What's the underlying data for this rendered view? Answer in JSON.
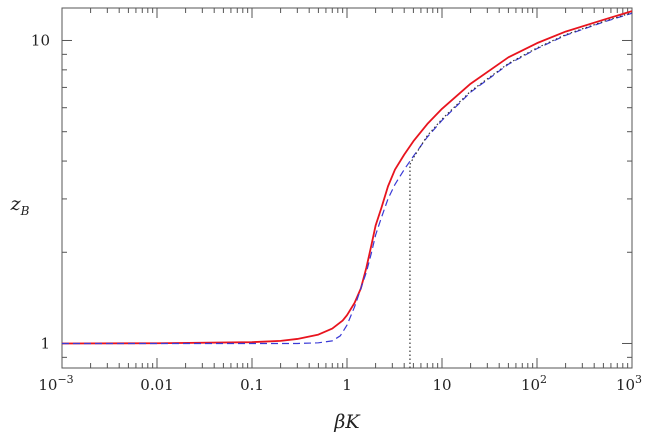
{
  "chart_data": {
    "type": "line",
    "xlabel": "βK",
    "ylabel": "z_B",
    "xscale": "log",
    "yscale": "log",
    "xlim": [
      0.001,
      1000
    ],
    "ylim": [
      0.83,
      12.8
    ],
    "grid": false,
    "legend": "none",
    "x_ticks": [
      {
        "value": 0.001,
        "label": "10",
        "exp": "−3"
      },
      {
        "value": 0.01,
        "label": "0.01",
        "exp": ""
      },
      {
        "value": 0.1,
        "label": "0.1",
        "exp": ""
      },
      {
        "value": 1,
        "label": "1",
        "exp": ""
      },
      {
        "value": 10,
        "label": "10",
        "exp": ""
      },
      {
        "value": 100,
        "label": "10",
        "exp": "2"
      },
      {
        "value": 1000,
        "label": "10",
        "exp": "3"
      }
    ],
    "y_ticks": [
      {
        "value": 1,
        "label": "1"
      },
      {
        "value": 10,
        "label": "10"
      }
    ],
    "vertical_marker": {
      "x": 4.6,
      "style": "dotted",
      "color": "#333333"
    },
    "series": [
      {
        "style": "solid",
        "color": "#e8141e",
        "points": [
          [
            0.001,
            1.0
          ],
          [
            0.01,
            1.002
          ],
          [
            0.1,
            1.01
          ],
          [
            0.2,
            1.02
          ],
          [
            0.3,
            1.035
          ],
          [
            0.5,
            1.07
          ],
          [
            0.7,
            1.12
          ],
          [
            0.9,
            1.19
          ],
          [
            1.0,
            1.24
          ],
          [
            1.2,
            1.36
          ],
          [
            1.4,
            1.52
          ],
          [
            1.6,
            1.78
          ],
          [
            1.8,
            2.1
          ],
          [
            2.0,
            2.45
          ],
          [
            2.3,
            2.8
          ],
          [
            2.7,
            3.3
          ],
          [
            3.2,
            3.75
          ],
          [
            4.0,
            4.2
          ],
          [
            5.0,
            4.65
          ],
          [
            7.0,
            5.3
          ],
          [
            10,
            5.95
          ],
          [
            20,
            7.2
          ],
          [
            50,
            8.8
          ],
          [
            100,
            9.8
          ],
          [
            200,
            10.7
          ],
          [
            500,
            11.7
          ],
          [
            1000,
            12.5
          ]
        ]
      },
      {
        "style": "dashed",
        "color": "#3a3ad6",
        "points": [
          [
            0.001,
            1.0
          ],
          [
            0.01,
            1.0
          ],
          [
            0.1,
            1.0
          ],
          [
            0.3,
            1.0
          ],
          [
            0.5,
            1.005
          ],
          [
            0.7,
            1.02
          ],
          [
            0.85,
            1.06
          ],
          [
            1.0,
            1.15
          ],
          [
            1.2,
            1.32
          ],
          [
            1.4,
            1.52
          ],
          [
            1.6,
            1.72
          ],
          [
            1.8,
            1.98
          ],
          [
            2.0,
            2.28
          ],
          [
            2.3,
            2.6
          ],
          [
            2.7,
            3.0
          ],
          [
            3.2,
            3.35
          ],
          [
            4.0,
            3.75
          ],
          [
            5.0,
            4.15
          ],
          [
            7.0,
            4.8
          ],
          [
            10,
            5.45
          ],
          [
            20,
            6.75
          ],
          [
            50,
            8.35
          ],
          [
            100,
            9.4
          ],
          [
            200,
            10.4
          ],
          [
            500,
            11.5
          ],
          [
            1000,
            12.3
          ]
        ]
      },
      {
        "style": "dotted",
        "color": "#333333",
        "points": [
          [
            4.6,
            3.9
          ],
          [
            5.0,
            4.1
          ],
          [
            7.0,
            4.85
          ],
          [
            10,
            5.5
          ],
          [
            20,
            6.8
          ],
          [
            50,
            8.4
          ],
          [
            100,
            9.45
          ],
          [
            200,
            10.45
          ],
          [
            500,
            11.55
          ],
          [
            1000,
            12.35
          ]
        ]
      }
    ]
  }
}
